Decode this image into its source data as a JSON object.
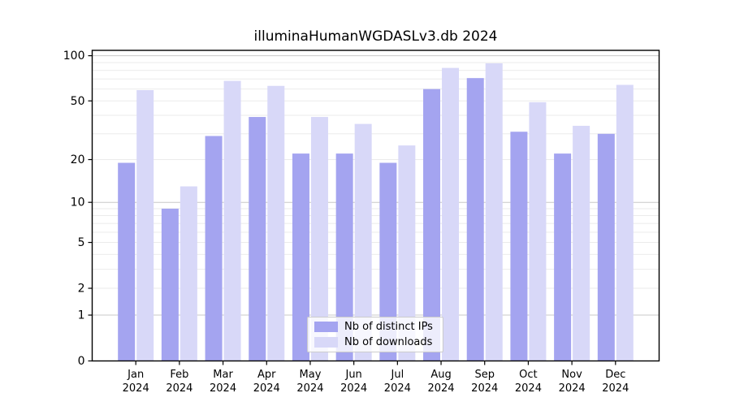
{
  "title": "illuminaHumanWGDASLv3.db 2024",
  "chart_data": {
    "type": "bar",
    "title": "illuminaHumanWGDASLv3.db 2024",
    "categories": [
      "Jan 2024",
      "Feb 2024",
      "Mar 2024",
      "Apr 2024",
      "May 2024",
      "Jun 2024",
      "Jul 2024",
      "Aug 2024",
      "Sep 2024",
      "Oct 2024",
      "Nov 2024",
      "Dec 2024"
    ],
    "x_tick_labels_line1": [
      "Jan",
      "Feb",
      "Mar",
      "Apr",
      "May",
      "Jun",
      "Jul",
      "Aug",
      "Sep",
      "Oct",
      "Nov",
      "Dec"
    ],
    "x_tick_labels_line2": [
      "2024",
      "2024",
      "2024",
      "2024",
      "2024",
      "2024",
      "2024",
      "2024",
      "2024",
      "2024",
      "2024",
      "2024"
    ],
    "series": [
      {
        "name": "Nb of distinct IPs",
        "color": "#a4a4f0",
        "values": [
          19,
          9,
          29,
          39,
          22,
          22,
          19,
          60,
          71,
          31,
          22,
          30
        ]
      },
      {
        "name": "Nb of downloads",
        "color": "#d8d8f8",
        "values": [
          59,
          13,
          68,
          63,
          39,
          35,
          25,
          83,
          89,
          49,
          34,
          64
        ]
      }
    ],
    "yscale": "log1p",
    "ylim": [
      0,
      107
    ],
    "y_tick_values": [
      0,
      1,
      2,
      5,
      10,
      20,
      50,
      100
    ],
    "y_tick_labels": [
      "0",
      "1",
      "2",
      "5",
      "10",
      "20",
      "50",
      "100"
    ],
    "grid_minor_values": [
      2,
      3,
      4,
      5,
      6,
      7,
      8,
      9,
      20,
      30,
      40,
      50,
      60,
      70,
      80,
      90
    ],
    "grid_major_values": [
      1,
      10,
      100
    ],
    "grid": true,
    "legend_position": "bottom-center",
    "colors": {
      "axis": "#000000",
      "grid_minor": "#ebebeb",
      "grid_major": "#c8c8c8",
      "background": "#ffffff",
      "tick_label": "#000000"
    }
  }
}
